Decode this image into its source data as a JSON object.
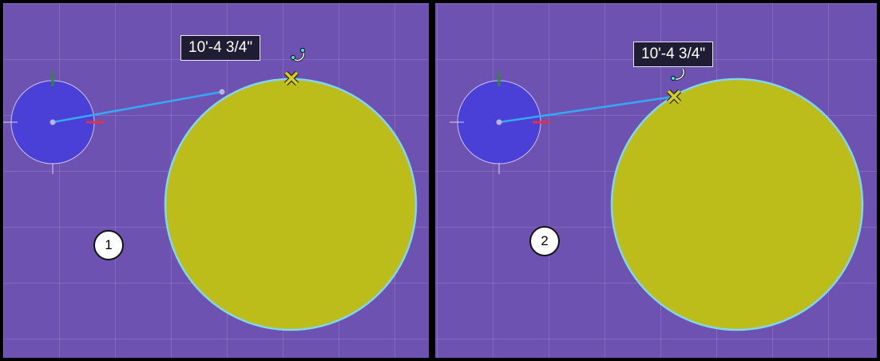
{
  "panels": [
    {
      "step_label": "1",
      "dimension_readout": "10'-4 3/4\""
    },
    {
      "step_label": "2",
      "dimension_readout": "10'-4 3/4\""
    }
  ],
  "colors": {
    "canvas_background": "#6e52b1",
    "gizmo_fill": "#4a3fd6",
    "target_circle_fill": "#bcbd1a",
    "circle_outline": "#7fd6f0",
    "measure_line": "#36a8f5",
    "snap_marker": "#c9c21c",
    "axis_y": "#2e8a3a",
    "axis_x": "#e0334a"
  },
  "icons": [
    "snap-x-icon",
    "tangent-snap-icon",
    "axis-gizmo-icon"
  ]
}
